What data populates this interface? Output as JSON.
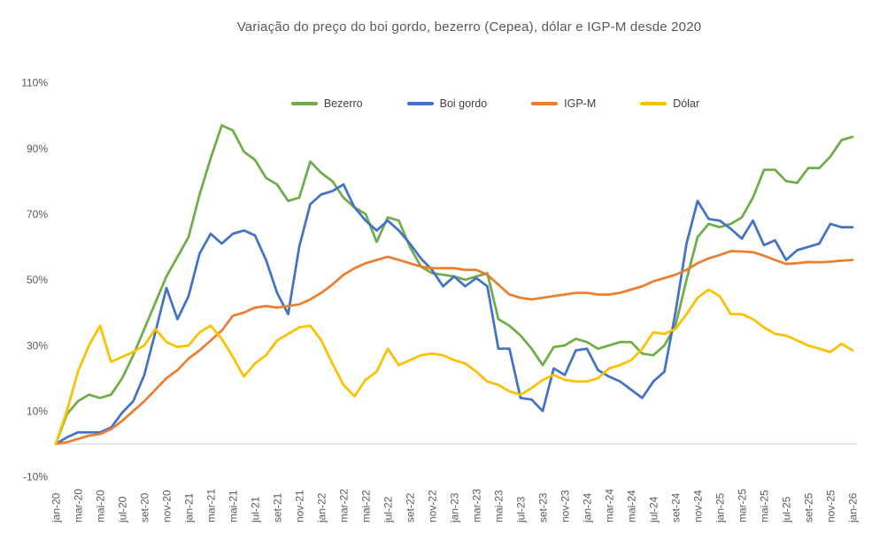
{
  "title": "Variação do preço do boi gordo, bezerro (Cepea), dólar e IGP-M desde 2020",
  "chart_data": {
    "type": "line",
    "title": "Variação do preço do boi gordo, bezerro (Cepea), dólar e IGP-M desde 2020",
    "xlabel": "",
    "ylabel": "",
    "ylim": [
      -10,
      110
    ],
    "grid": "none (single light-gray baseline at 0%)",
    "legend_position": "top",
    "x_frequency": "monthly",
    "x_start": "jan-20",
    "x_end": "jan-26",
    "x_tick_labels": [
      "jan-20",
      "mar-20",
      "mai-20",
      "jul-20",
      "set-20",
      "nov-20",
      "jan-21",
      "mar-21",
      "mai-21",
      "jul-21",
      "set-21",
      "nov-21",
      "jan-22",
      "mar-22",
      "mai-22",
      "jul-22",
      "set-22",
      "nov-22",
      "jan-23",
      "mar-23",
      "mai-23",
      "jul-23",
      "set-23",
      "nov-23",
      "jan-24",
      "mar-24",
      "mai-24",
      "jul-24",
      "set-24",
      "nov-24",
      "jan-25",
      "mar-25",
      "mai-25",
      "jul-25",
      "set-25",
      "nov-25",
      "jan-26"
    ],
    "months_per_tick": 2,
    "y_ticks": [
      {
        "label": "110%",
        "value": 110
      },
      {
        "label": "90%",
        "value": 90
      },
      {
        "label": "70%",
        "value": 70
      },
      {
        "label": "50%",
        "value": 50
      },
      {
        "label": "30%",
        "value": 30
      },
      {
        "label": "10%",
        "value": 10
      },
      {
        "label": "-10%",
        "value": -10
      }
    ],
    "baseline_value": 0,
    "baseline_color": "#D9D9D9",
    "series": [
      {
        "id": "bezerro",
        "name": "Bezerro",
        "color": "#70AD47",
        "unit": "%",
        "values": [
          0,
          9,
          13,
          15,
          14,
          15,
          20,
          27,
          35,
          43,
          51,
          57,
          63,
          76,
          87,
          97,
          95.5,
          89,
          86.5,
          81,
          79,
          74,
          75,
          86,
          82.5,
          80,
          75,
          72,
          70,
          61.5,
          69,
          68,
          60,
          54,
          52,
          51.5,
          51,
          50,
          51,
          52,
          38,
          36,
          33,
          29,
          24,
          29.5,
          30,
          32,
          31,
          29,
          30,
          31,
          31,
          27.5,
          27,
          30,
          36,
          50,
          63,
          67,
          66,
          67,
          69,
          75,
          83.5,
          83.5,
          80,
          79.5,
          84,
          84,
          87.5,
          92.5,
          93.5
        ]
      },
      {
        "id": "boi-gordo",
        "name": "Boi gordo",
        "color": "#4472C4",
        "unit": "%",
        "values": [
          0,
          2,
          3.5,
          3.5,
          3.5,
          5,
          9.5,
          13,
          21,
          34,
          47.5,
          38,
          45,
          58,
          64,
          61,
          64,
          65,
          63.5,
          56,
          46,
          39.5,
          60,
          73,
          76,
          77,
          79,
          72,
          68,
          65,
          68,
          65,
          61,
          56.5,
          53,
          48,
          51,
          48,
          50.5,
          48,
          29,
          29,
          14,
          13.5,
          10,
          23,
          21,
          28.5,
          29,
          22.5,
          20.5,
          19,
          16.5,
          14,
          19,
          22,
          40,
          61,
          74,
          68.5,
          68,
          65.5,
          62.5,
          68,
          60.5,
          62,
          56,
          59,
          60,
          61,
          67,
          66,
          66
        ]
      },
      {
        "id": "igpm",
        "name": "IGP-M",
        "color": "#ED7D31",
        "unit": "%",
        "values": [
          0,
          0.5,
          1.5,
          2.5,
          3,
          4.5,
          7,
          10,
          13,
          16.5,
          20,
          22.5,
          26,
          28.5,
          31.5,
          34.5,
          39,
          40,
          41.5,
          42,
          41.5,
          42,
          42.5,
          44,
          46,
          48.5,
          51.5,
          53.5,
          55,
          56,
          57,
          56,
          55,
          54,
          53.5,
          53.5,
          53.5,
          53,
          53,
          51.5,
          48.5,
          45.5,
          44.5,
          44,
          44.5,
          45,
          45.5,
          46,
          46,
          45.5,
          45.5,
          46,
          47,
          48,
          49.5,
          50.5,
          51.5,
          53,
          55,
          56.5,
          57.5,
          58.7,
          58.6,
          58.4,
          57.3,
          56,
          54.8,
          55,
          55.4,
          55.3,
          55.5,
          55.8,
          56
        ]
      },
      {
        "id": "dolar",
        "name": "Dólar",
        "color": "#FFC000",
        "unit": "%",
        "values": [
          0,
          10,
          22,
          30,
          36,
          25,
          26.5,
          28,
          30,
          35,
          31,
          29.5,
          30,
          34,
          36,
          32,
          26.5,
          20.5,
          24.5,
          27,
          31.5,
          33.5,
          35.5,
          36,
          31.5,
          24.5,
          18,
          14.5,
          19.5,
          22,
          29,
          24,
          25.5,
          27,
          27.5,
          27,
          25.5,
          24.5,
          22,
          19,
          18,
          16,
          15,
          17,
          19.5,
          21,
          19.5,
          19,
          19,
          20,
          23,
          24,
          25.5,
          29,
          34,
          33.5,
          35,
          39.5,
          44.5,
          47,
          45,
          39.5,
          39.5,
          38,
          35.5,
          33.5,
          33,
          31.5,
          30,
          29,
          28,
          30.5,
          28.5
        ]
      }
    ]
  }
}
